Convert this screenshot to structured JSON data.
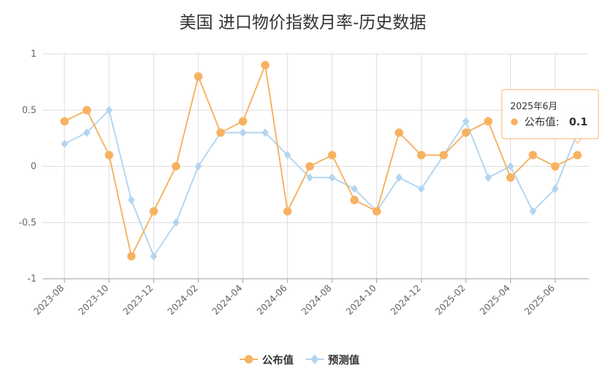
{
  "chart_data": {
    "type": "line",
    "title": "美国 进口物价指数月率-历史数据",
    "x": [
      "2023-08",
      "2023-09",
      "2023-10",
      "2023-11",
      "2023-12",
      "2024-01",
      "2024-02",
      "2024-03",
      "2024-04",
      "2024-05",
      "2024-06",
      "2024-07",
      "2024-08",
      "2024-09",
      "2024-10",
      "2024-11",
      "2024-12",
      "2025-01",
      "2025-02",
      "2025-03",
      "2025-04",
      "2025-05",
      "2025-06",
      "2025-07"
    ],
    "x_tick_labels": [
      "2023-08",
      "2023-10",
      "2023-12",
      "2024-02",
      "2024-04",
      "2024-06",
      "2024-08",
      "2024-10",
      "2024-12",
      "2025-02",
      "2025-04",
      "2025-06"
    ],
    "y_tick_labels": [
      "1",
      "0.5",
      "0",
      "-0.5",
      "-1"
    ],
    "ylim": [
      -1,
      1
    ],
    "grid": true,
    "legend_position": "bottom-center",
    "series": [
      {
        "name": "公布值",
        "color": "#f7b261",
        "marker": "circle",
        "values": [
          0.4,
          0.5,
          0.1,
          -0.8,
          -0.4,
          0.0,
          0.8,
          0.3,
          0.4,
          0.9,
          -0.4,
          0.0,
          0.1,
          -0.3,
          -0.4,
          0.3,
          0.1,
          0.1,
          0.3,
          0.4,
          -0.1,
          0.1,
          0.0,
          0.1
        ]
      },
      {
        "name": "预测值",
        "color": "#b3d5f0",
        "marker": "diamond",
        "values": [
          0.2,
          0.3,
          0.5,
          -0.3,
          -0.8,
          -0.5,
          0.0,
          0.3,
          0.3,
          0.3,
          0.1,
          -0.1,
          -0.1,
          -0.2,
          -0.4,
          -0.1,
          -0.2,
          0.1,
          0.4,
          -0.1,
          0.0,
          -0.4,
          -0.2,
          0.3
        ]
      }
    ],
    "tooltip": {
      "date": "2025年6月",
      "label": "公布值:",
      "value": "0.1",
      "series_index": 0,
      "point_index": 23
    }
  }
}
